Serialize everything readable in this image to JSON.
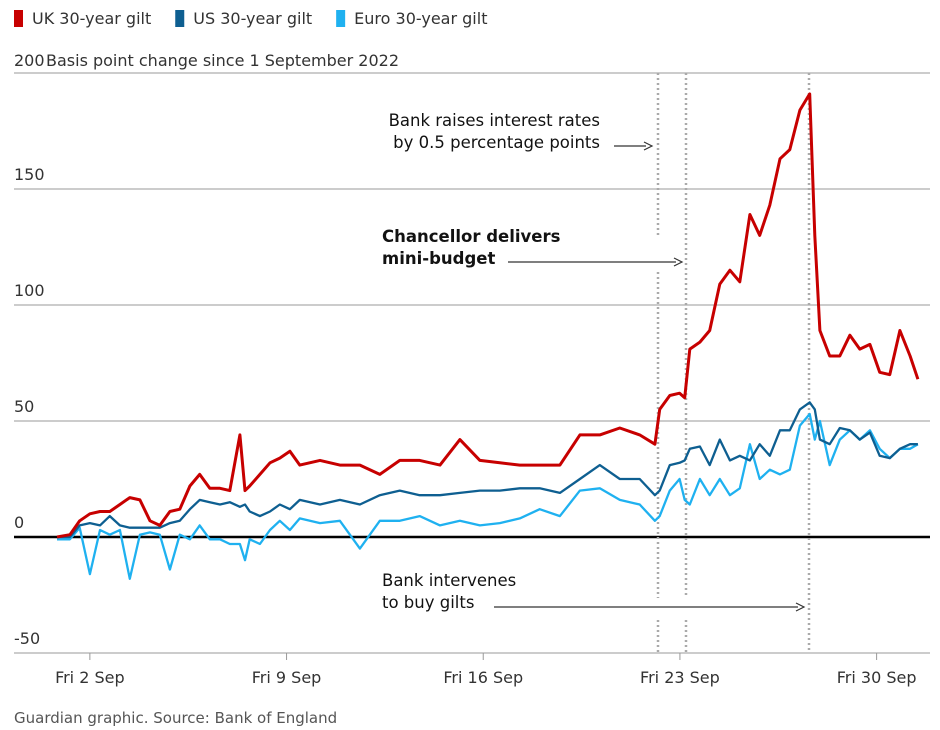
{
  "chart_data": {
    "type": "line",
    "subtitle": "Basis point change since 1 September 2022",
    "source": "Guardian graphic. Source: Bank of England",
    "x": [
      0.83,
      1.29,
      1.64,
      2.0,
      2.36,
      2.71,
      3.07,
      3.42,
      3.78,
      4.14,
      4.49,
      4.85,
      5.2,
      5.56,
      5.91,
      6.27,
      6.63,
      6.98,
      7.34,
      7.52,
      7.69,
      8.05,
      8.41,
      8.76,
      9.12,
      9.47,
      10.19,
      10.9,
      11.61,
      12.32,
      13.03,
      13.74,
      14.46,
      15.17,
      15.88,
      16.59,
      17.3,
      18.01,
      18.73,
      19.44,
      20.15,
      20.86,
      21.57,
      22.11,
      22.28,
      22.64,
      22.99,
      23.17,
      23.35,
      23.71,
      24.06,
      24.42,
      24.78,
      25.13,
      25.49,
      25.84,
      26.2,
      26.56,
      26.91,
      27.27,
      27.62,
      27.8,
      27.98,
      28.33,
      28.69,
      29.05,
      29.4,
      29.76,
      30.11,
      30.47,
      30.83,
      31.19,
      31.47
    ],
    "series": [
      {
        "name": "UK 30-year gilt",
        "color": "#c70000",
        "values": [
          0,
          1,
          7,
          10,
          11,
          11,
          14,
          17,
          16,
          7,
          5,
          11,
          12,
          22,
          27,
          21,
          21,
          20,
          44,
          20,
          22,
          27,
          32,
          34,
          37,
          31,
          33,
          31,
          31,
          27,
          33,
          33,
          31,
          42,
          33,
          32,
          31,
          31,
          31,
          44,
          44,
          47,
          44,
          40,
          55,
          61,
          62,
          60,
          81,
          84,
          89,
          109,
          115,
          110,
          139,
          130,
          143,
          163,
          167,
          184,
          191,
          130,
          89,
          78,
          78,
          87,
          81,
          83,
          71,
          70,
          89,
          78,
          68
        ]
      },
      {
        "name": "US 30-year gilt",
        "color": "#0e5f91",
        "values": [
          0,
          0,
          5,
          6,
          5,
          9,
          5,
          4,
          4,
          4,
          4,
          6,
          7,
          12,
          16,
          15,
          14,
          15,
          13,
          14,
          11,
          9,
          11,
          14,
          12,
          16,
          14,
          16,
          14,
          18,
          20,
          18,
          18,
          19,
          20,
          20,
          21,
          21,
          19,
          25,
          31,
          25,
          25,
          18,
          20,
          31,
          32,
          33,
          38,
          39,
          31,
          42,
          33,
          35,
          33,
          40,
          35,
          46,
          46,
          55,
          58,
          55,
          42,
          40,
          47,
          46,
          42,
          45,
          35,
          34,
          38,
          40,
          40
        ]
      },
      {
        "name": "Euro 30-year gilt",
        "color": "#1fb1f0",
        "values": [
          -1,
          -1,
          4,
          -16,
          3,
          1,
          3,
          -18,
          1,
          2,
          1,
          -14,
          1,
          -1,
          5,
          -1,
          -1,
          -3,
          -3,
          -10,
          -1,
          -3,
          3,
          7,
          3,
          8,
          6,
          7,
          -5,
          7,
          7,
          9,
          5,
          7,
          5,
          6,
          8,
          12,
          9,
          20,
          21,
          16,
          14,
          7,
          9,
          20,
          25,
          16,
          14,
          25,
          18,
          25,
          18,
          21,
          40,
          25,
          29,
          27,
          29,
          48,
          53,
          42,
          50,
          31,
          42,
          46,
          42,
          46,
          38,
          34,
          38,
          38,
          40
        ]
      }
    ],
    "xlim": [
      -0.7,
      31.9
    ],
    "xticks": [
      {
        "value": 2,
        "label": "Fri 2 Sep"
      },
      {
        "value": 9,
        "label": "Fri 9 Sep"
      },
      {
        "value": 16,
        "label": "Fri 16 Sep"
      },
      {
        "value": 23,
        "label": "Fri 23 Sep"
      },
      {
        "value": 30,
        "label": "Fri 30 Sep"
      }
    ],
    "ylim": [
      -50,
      200
    ],
    "yticks": [
      -50,
      0,
      50,
      100,
      150,
      200
    ],
    "grid": true,
    "annotations": [
      {
        "lines": [
          "Bank raises interest rates",
          "by 0.5 percentage points"
        ]
      },
      {
        "lines": [
          "Chancellor delivers",
          "mini-budget"
        ]
      },
      {
        "lines": [
          "Bank intervenes",
          "to buy gilts"
        ]
      }
    ]
  }
}
